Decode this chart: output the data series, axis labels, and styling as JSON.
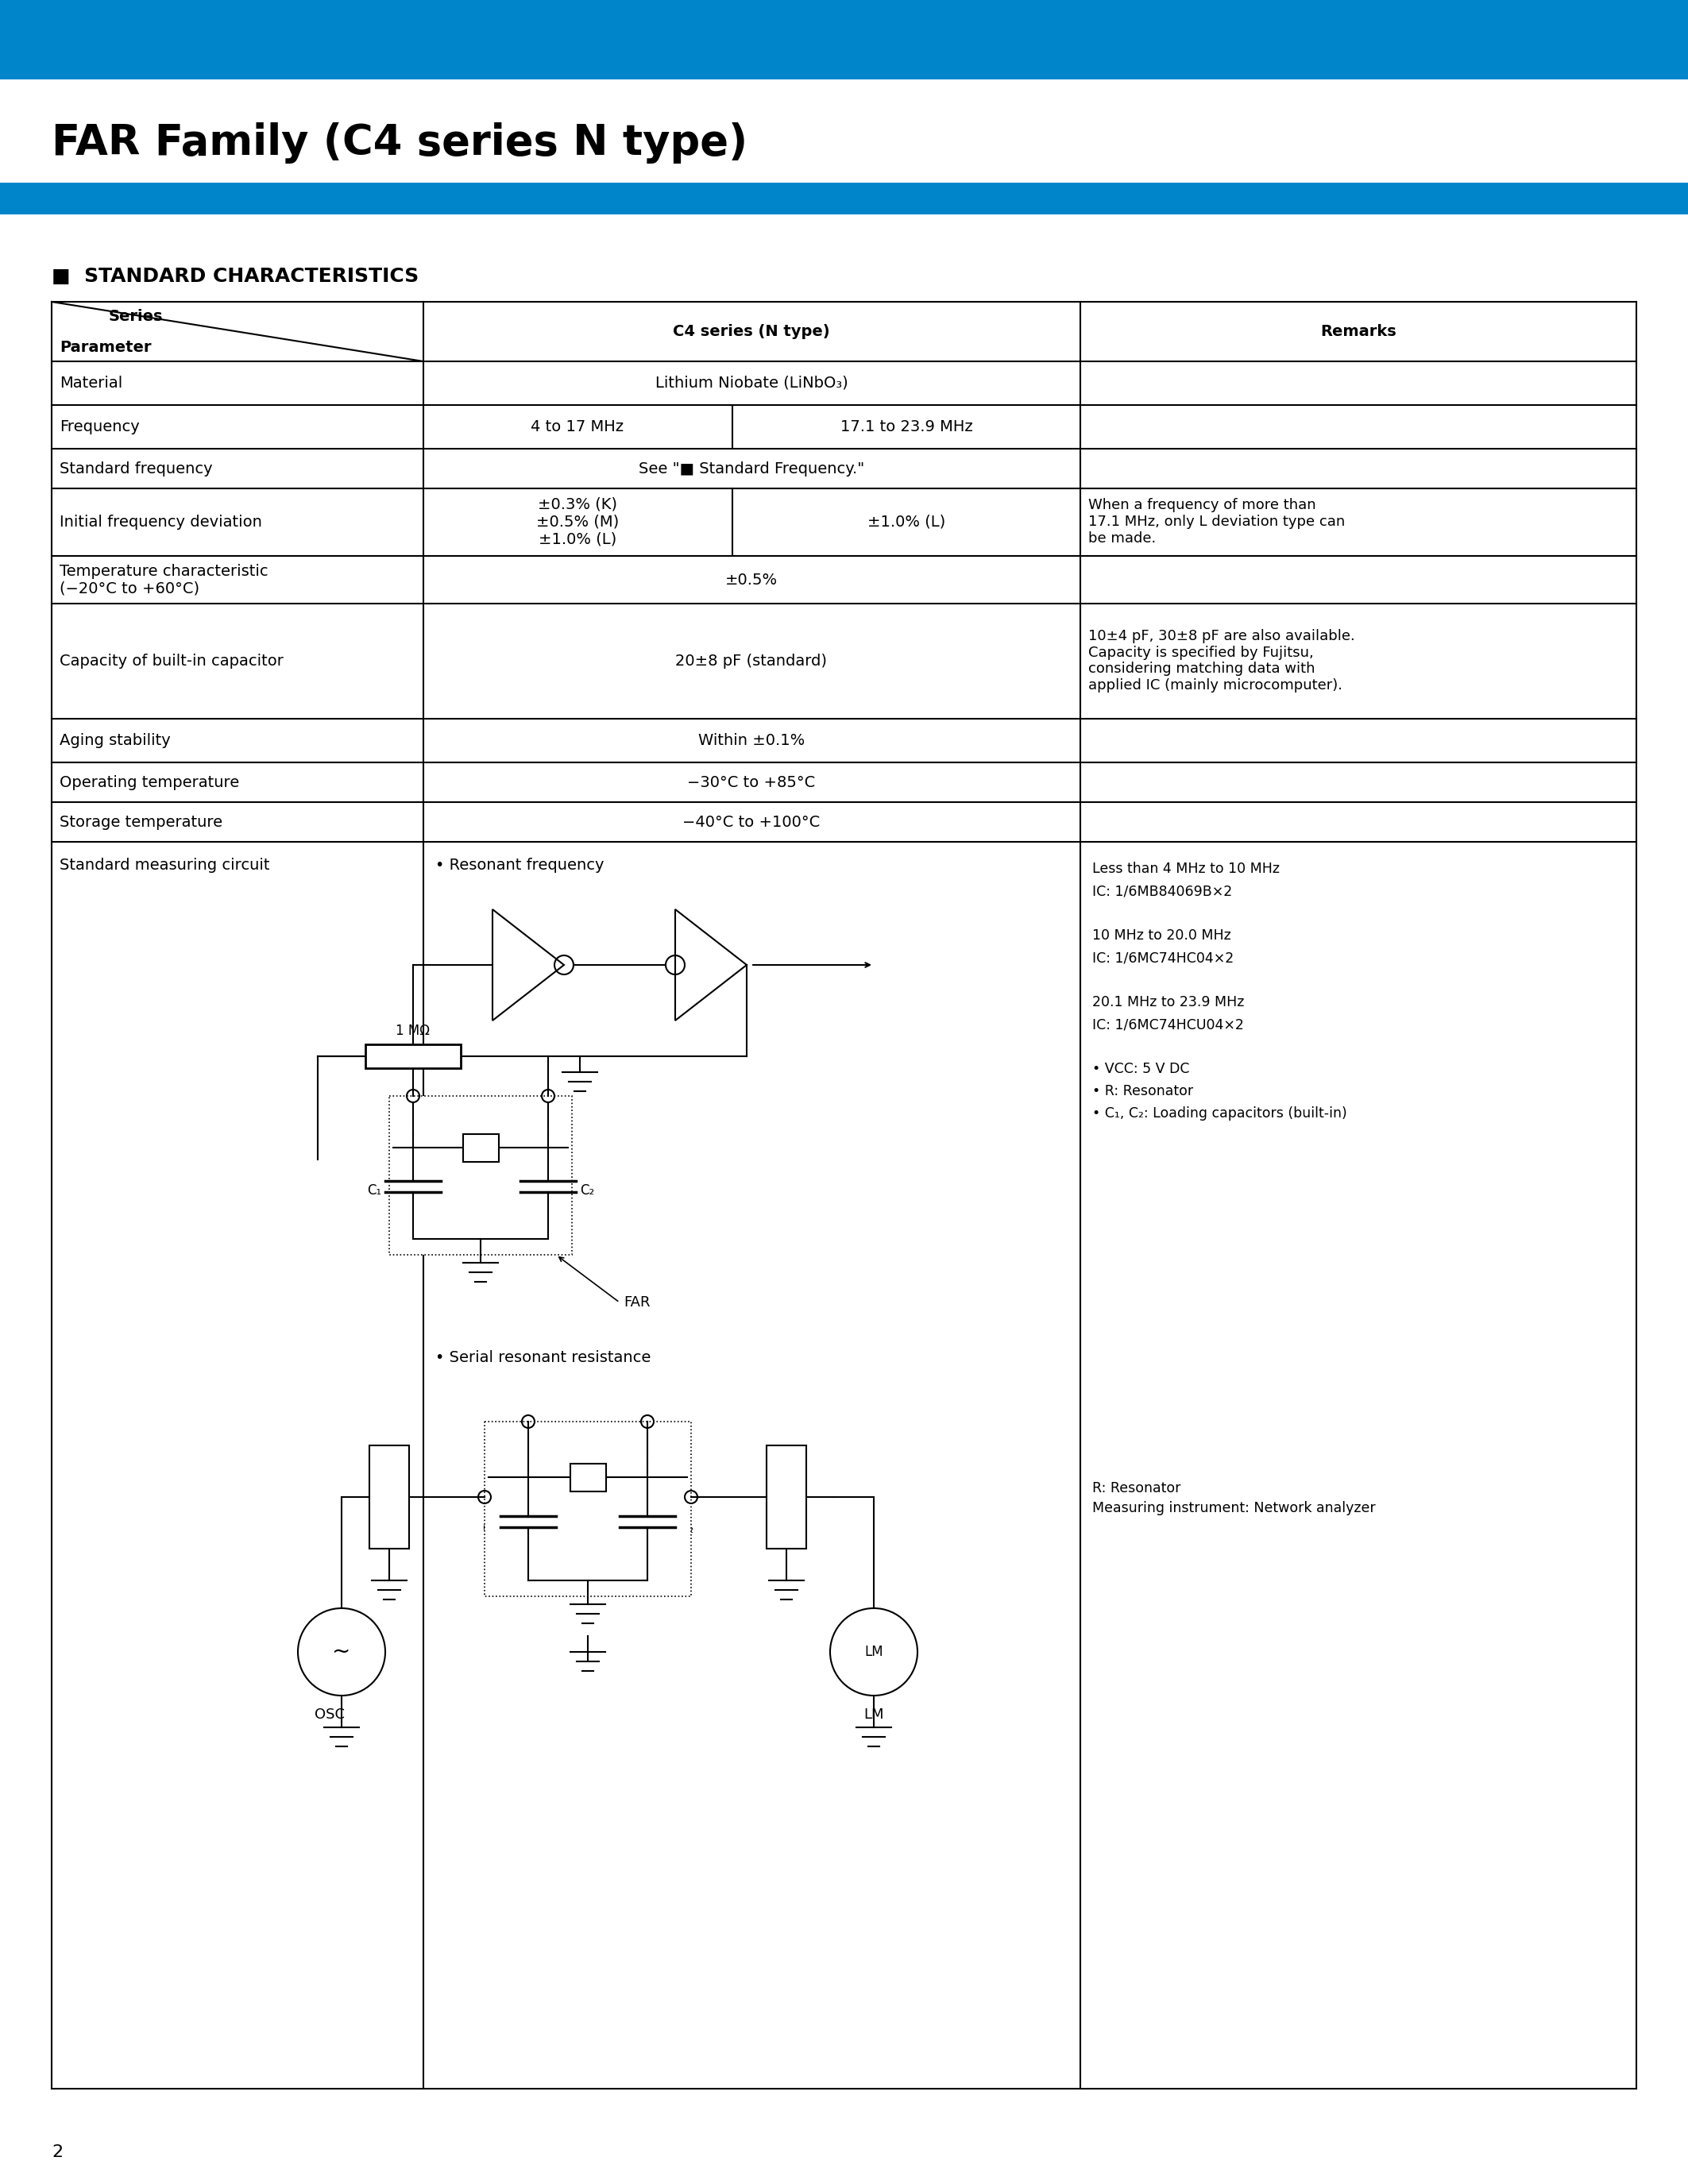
{
  "page_title": "FAR Family (C4 series N type)",
  "section_title": "STANDARD CHARACTERISTICS",
  "header_blue": "#0085CA",
  "page_number": "2",
  "note_lines_resonant": [
    "Less than 4 MHz to 10 MHz",
    "IC: 1/6MB84069B×2",
    "",
    "10 MHz to 20.0 MHz",
    "IC: 1/6MC74HC04×2",
    "",
    "20.1 MHz to 23.9 MHz",
    "IC: 1/6MC74HCU04×2",
    "",
    "• VCC: 5 V DC",
    "• R: Resonator",
    "• C₁, C₂: Loading capacitors (built-in)"
  ],
  "note_serial": "R: Resonator\nMeasuring instrument: Network analyzer"
}
